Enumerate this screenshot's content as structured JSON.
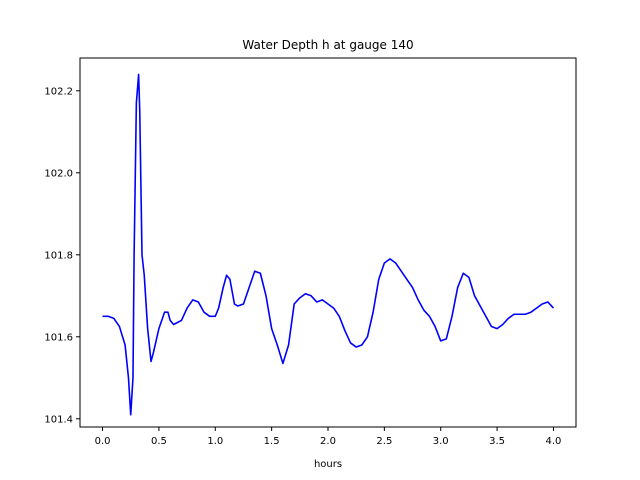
{
  "chart_data": {
    "type": "line",
    "title": "Water Depth h at gauge 140",
    "xlabel": "hours",
    "ylabel": "",
    "xlim": [
      -0.2,
      4.2
    ],
    "ylim": [
      101.38,
      102.28
    ],
    "xticks": [
      0.0,
      0.5,
      1.0,
      1.5,
      2.0,
      2.5,
      3.0,
      3.5,
      4.0
    ],
    "xtick_labels": [
      "0.0",
      "0.5",
      "1.0",
      "1.5",
      "2.0",
      "2.5",
      "3.0",
      "3.5",
      "4.0"
    ],
    "yticks": [
      101.4,
      101.6,
      101.8,
      102.0,
      102.2
    ],
    "ytick_labels": [
      "101.4",
      "101.6",
      "101.8",
      "102.0",
      "102.2"
    ],
    "grid": false,
    "legend": "none",
    "series": [
      {
        "color": "#0000ff",
        "x": [
          0.0,
          0.05,
          0.1,
          0.15,
          0.2,
          0.23,
          0.25,
          0.27,
          0.28,
          0.3,
          0.32,
          0.33,
          0.35,
          0.37,
          0.4,
          0.43,
          0.45,
          0.5,
          0.55,
          0.58,
          0.6,
          0.63,
          0.7,
          0.75,
          0.8,
          0.85,
          0.9,
          0.95,
          1.0,
          1.03,
          1.07,
          1.1,
          1.13,
          1.17,
          1.2,
          1.25,
          1.3,
          1.35,
          1.4,
          1.45,
          1.5,
          1.55,
          1.6,
          1.65,
          1.7,
          1.75,
          1.8,
          1.85,
          1.9,
          1.95,
          2.0,
          2.05,
          2.1,
          2.15,
          2.2,
          2.25,
          2.3,
          2.35,
          2.4,
          2.45,
          2.5,
          2.55,
          2.6,
          2.65,
          2.7,
          2.75,
          2.8,
          2.85,
          2.9,
          2.95,
          3.0,
          3.05,
          3.1,
          3.15,
          3.2,
          3.25,
          3.3,
          3.35,
          3.4,
          3.45,
          3.5,
          3.55,
          3.6,
          3.65,
          3.7,
          3.75,
          3.8,
          3.85,
          3.9,
          3.95,
          4.0
        ],
        "y": [
          101.65,
          101.65,
          101.645,
          101.625,
          101.58,
          101.5,
          101.41,
          101.5,
          101.8,
          102.17,
          102.24,
          102.15,
          101.8,
          101.75,
          101.62,
          101.54,
          101.56,
          101.62,
          101.66,
          101.66,
          101.64,
          101.63,
          101.64,
          101.67,
          101.69,
          101.685,
          101.66,
          101.65,
          101.65,
          101.67,
          101.72,
          101.75,
          101.74,
          101.68,
          101.675,
          101.68,
          101.72,
          101.76,
          101.755,
          101.7,
          101.62,
          101.58,
          101.535,
          101.58,
          101.68,
          101.695,
          101.705,
          101.7,
          101.685,
          101.69,
          101.68,
          101.67,
          101.65,
          101.615,
          101.585,
          101.575,
          101.58,
          101.6,
          101.66,
          101.74,
          101.78,
          101.79,
          101.78,
          101.76,
          101.74,
          101.72,
          101.69,
          101.665,
          101.65,
          101.625,
          101.59,
          101.595,
          101.65,
          101.72,
          101.755,
          101.745,
          101.7,
          101.675,
          101.65,
          101.625,
          101.62,
          101.63,
          101.645,
          101.655,
          101.655,
          101.655,
          101.66,
          101.67,
          101.68,
          101.685,
          101.67
        ]
      }
    ]
  }
}
